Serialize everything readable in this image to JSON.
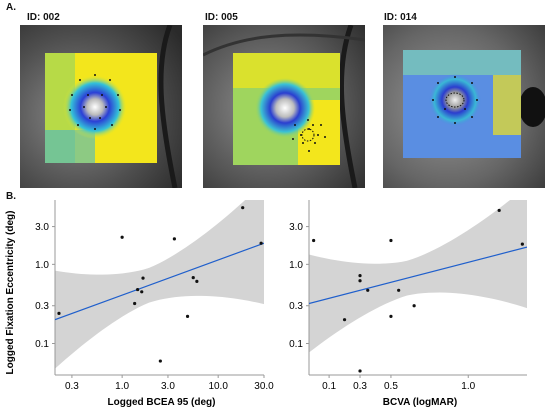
{
  "panel_a": {
    "letter": "A.",
    "images": [
      {
        "id_label": "ID: 002"
      },
      {
        "id_label": "ID: 005"
      },
      {
        "id_label": "ID: 014"
      }
    ]
  },
  "panel_b": {
    "letter": "B."
  },
  "chart_data": [
    {
      "type": "scatter",
      "title": "",
      "xlabel": "Logged BCEA 95 (deg)",
      "ylabel": "Logged Fixation Eccentricity (deg)",
      "x_scale": "log",
      "y_scale": "log",
      "xlim": [
        0.2,
        30
      ],
      "ylim": [
        0.04,
        6.5
      ],
      "x_ticks": [
        "0.3",
        "1.0",
        "3.0",
        "10.0",
        "30.0"
      ],
      "y_ticks": [
        "0.1",
        "0.3",
        "1.0",
        "3.0"
      ],
      "points": [
        {
          "x": 0.22,
          "y": 0.24
        },
        {
          "x": 1.0,
          "y": 2.2
        },
        {
          "x": 1.35,
          "y": 0.32
        },
        {
          "x": 1.45,
          "y": 0.48
        },
        {
          "x": 1.6,
          "y": 0.45
        },
        {
          "x": 1.65,
          "y": 0.67
        },
        {
          "x": 2.5,
          "y": 0.06
        },
        {
          "x": 3.5,
          "y": 2.1
        },
        {
          "x": 4.8,
          "y": 0.22
        },
        {
          "x": 5.5,
          "y": 0.68
        },
        {
          "x": 6.0,
          "y": 0.61
        },
        {
          "x": 18.0,
          "y": 5.2
        },
        {
          "x": 28.0,
          "y": 1.85
        }
      ],
      "fit_line": {
        "x": [
          0.2,
          30
        ],
        "y": [
          0.2,
          1.85
        ]
      },
      "fit_color": "#1f5fcc",
      "band_color": "#d4d4d4"
    },
    {
      "type": "scatter",
      "title": "",
      "xlabel": "BCVA (logMAR)",
      "ylabel": "",
      "x_scale": "linear",
      "y_scale": "log",
      "xlim": [
        -0.03,
        1.38
      ],
      "ylim": [
        0.04,
        6.5
      ],
      "x_ticks": [
        "0.1",
        "0.3",
        "0.5",
        "1.0"
      ],
      "y_ticks": [
        "0.1",
        "0.3",
        "1.0",
        "3.0"
      ],
      "points": [
        {
          "x": 0.0,
          "y": 2.0
        },
        {
          "x": 0.2,
          "y": 0.2
        },
        {
          "x": 0.3,
          "y": 0.045
        },
        {
          "x": 0.3,
          "y": 0.72
        },
        {
          "x": 0.3,
          "y": 0.62
        },
        {
          "x": 0.35,
          "y": 0.47
        },
        {
          "x": 0.5,
          "y": 2.0
        },
        {
          "x": 0.5,
          "y": 0.22
        },
        {
          "x": 0.55,
          "y": 0.47
        },
        {
          "x": 0.65,
          "y": 0.3
        },
        {
          "x": 1.2,
          "y": 4.8
        },
        {
          "x": 1.35,
          "y": 1.8
        }
      ],
      "fit_line": {
        "x": [
          -0.03,
          1.38
        ],
        "y": [
          0.32,
          1.65
        ]
      },
      "fit_color": "#1f5fcc",
      "band_color": "#d4d4d4"
    }
  ]
}
